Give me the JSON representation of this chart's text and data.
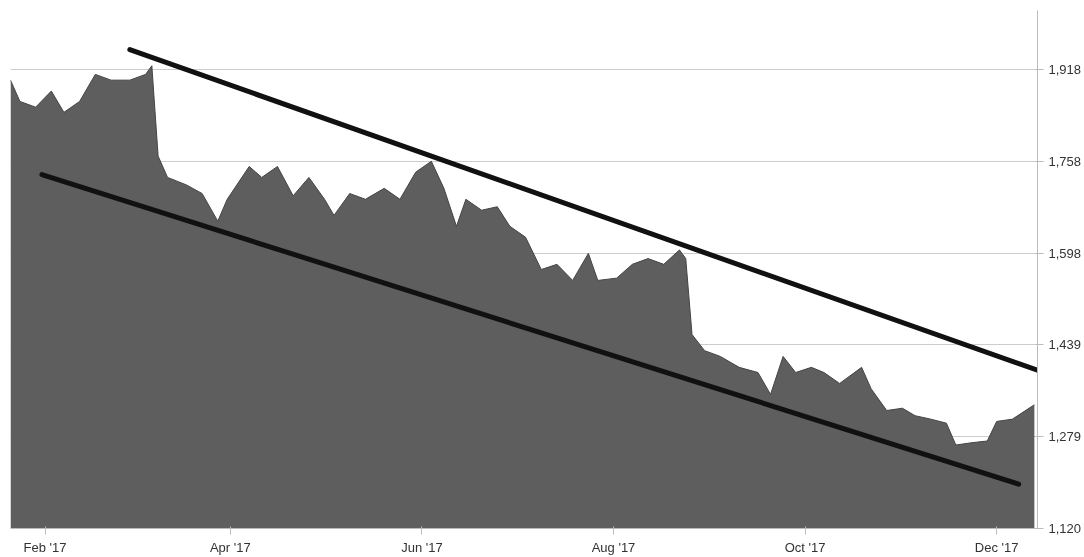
{
  "chart_data": {
    "type": "area",
    "grid": "y",
    "ylim": [
      1120,
      2020
    ],
    "yticks": [
      {
        "value": 1120,
        "label": "1,120"
      },
      {
        "value": 1279,
        "label": "1,279"
      },
      {
        "value": 1439,
        "label": "1,439"
      },
      {
        "value": 1598,
        "label": "1,598"
      },
      {
        "value": 1758,
        "label": "1,758"
      },
      {
        "value": 1918,
        "label": "1,918"
      }
    ],
    "xlim": [
      "2017-01-21",
      "2017-12-14"
    ],
    "xticks": [
      {
        "value": "2017-02-01",
        "label": "Feb '17"
      },
      {
        "value": "2017-04-01",
        "label": "Apr '17"
      },
      {
        "value": "2017-06-01",
        "label": "Jun '17"
      },
      {
        "value": "2017-08-01",
        "label": "Aug '17"
      },
      {
        "value": "2017-10-01",
        "label": "Oct '17"
      },
      {
        "value": "2017-12-01",
        "label": "Dec '17"
      }
    ],
    "x": [
      "2017-01-21",
      "2017-01-24",
      "2017-01-29",
      "2017-02-03",
      "2017-02-07",
      "2017-02-12",
      "2017-02-17",
      "2017-02-22",
      "2017-02-28",
      "2017-03-05",
      "2017-03-07",
      "2017-03-09",
      "2017-03-12",
      "2017-03-18",
      "2017-03-23",
      "2017-03-28",
      "2017-03-31",
      "2017-04-07",
      "2017-04-11",
      "2017-04-16",
      "2017-04-21",
      "2017-04-26",
      "2017-05-01",
      "2017-05-04",
      "2017-05-09",
      "2017-05-14",
      "2017-05-20",
      "2017-05-25",
      "2017-05-30",
      "2017-06-04",
      "2017-06-08",
      "2017-06-12",
      "2017-06-15",
      "2017-06-20",
      "2017-06-25",
      "2017-06-29",
      "2017-07-04",
      "2017-07-09",
      "2017-07-14",
      "2017-07-19",
      "2017-07-24",
      "2017-07-27",
      "2017-08-02",
      "2017-08-07",
      "2017-08-12",
      "2017-08-17",
      "2017-08-22",
      "2017-08-24",
      "2017-08-26",
      "2017-08-30",
      "2017-09-04",
      "2017-09-10",
      "2017-09-16",
      "2017-09-20",
      "2017-09-24",
      "2017-09-28",
      "2017-10-03",
      "2017-10-07",
      "2017-10-12",
      "2017-10-19",
      "2017-10-22",
      "2017-10-27",
      "2017-11-01",
      "2017-11-05",
      "2017-11-10",
      "2017-11-15",
      "2017-11-18",
      "2017-11-23",
      "2017-11-28",
      "2017-12-01",
      "2017-12-06",
      "2017-12-13"
    ],
    "series": [
      {
        "color": "#5e5e5e",
        "values": [
          1899,
          1862,
          1852,
          1880,
          1843,
          1862,
          1909,
          1899,
          1899,
          1909,
          1924,
          1767,
          1730,
          1717,
          1702,
          1654,
          1692,
          1749,
          1730,
          1749,
          1698,
          1730,
          1692,
          1664,
          1702,
          1692,
          1711,
          1692,
          1739,
          1758,
          1711,
          1645,
          1692,
          1673,
          1679,
          1645,
          1626,
          1570,
          1579,
          1551,
          1598,
          1551,
          1555,
          1579,
          1589,
          1579,
          1604,
          1589,
          1457,
          1429,
          1419,
          1400,
          1391,
          1353,
          1419,
          1391,
          1400,
          1391,
          1372,
          1400,
          1363,
          1325,
          1329,
          1316,
          1310,
          1303,
          1265,
          1269,
          1272,
          1306,
          1310,
          1335
        ]
      },
      {
        "type": "line",
        "color": "#111111",
        "x": [
          "2017-02-28",
          "2017-12-14"
        ],
        "values": [
          1952,
          1395
        ]
      },
      {
        "type": "line",
        "color": "#111111",
        "x": [
          "2017-01-31",
          "2017-12-08"
        ],
        "values": [
          1735,
          1197
        ]
      }
    ]
  }
}
